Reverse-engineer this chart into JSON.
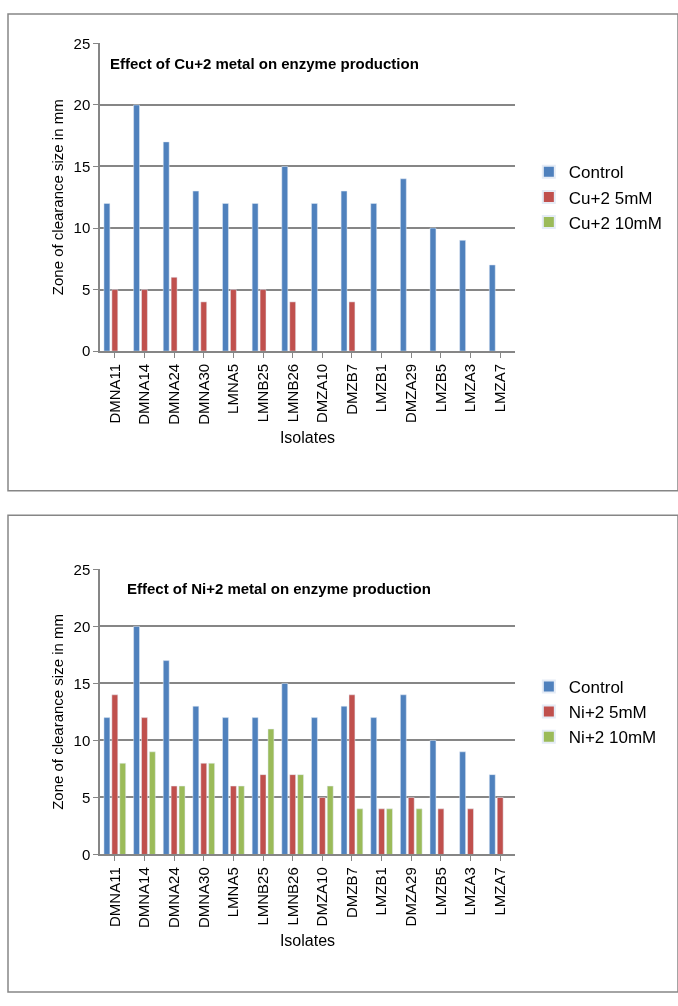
{
  "chart_data": [
    {
      "type": "bar",
      "title": "Effect of Cu+2 metal on enzyme production",
      "xlabel": "Isolates",
      "ylabel": "Zone of clearance size in mm",
      "categories": [
        "DMNA11",
        "DMNA14",
        "DMNA24",
        "DMNA30",
        "LMNA5",
        "LMNB25",
        "LMNB26",
        "DMZA10",
        "DMZB7",
        "LMZB1",
        "DMZA29",
        "LMZB5",
        "LMZA3",
        "LMZA7"
      ],
      "series": [
        {
          "name": "Control",
          "color": "#4f81bd",
          "values": [
            12,
            20,
            17,
            13,
            12,
            12,
            15,
            12,
            13,
            12,
            14,
            10,
            9,
            7
          ]
        },
        {
          "name": "Cu+2 5mM",
          "color": "#c0504d",
          "values": [
            5,
            5,
            6,
            4,
            5,
            5,
            4,
            null,
            4,
            null,
            null,
            null,
            null,
            null
          ]
        },
        {
          "name": "Cu+2 10mM",
          "color": "#9bbb59",
          "values": [
            null,
            null,
            null,
            null,
            null,
            null,
            null,
            null,
            null,
            null,
            null,
            null,
            null,
            null
          ]
        }
      ],
      "ylim": [
        0,
        25
      ],
      "yticks": [
        0,
        5,
        10,
        15,
        20,
        25
      ],
      "grid": "y",
      "legend": "right"
    },
    {
      "type": "bar",
      "title": "Effect of Ni+2 metal on enzyme production",
      "xlabel": "Isolates",
      "ylabel": "Zone of clearance size in mm",
      "categories": [
        "DMNA11",
        "DMNA14",
        "DMNA24",
        "DMNA30",
        "LMNA5",
        "LMNB25",
        "LMNB26",
        "DMZA10",
        "DMZB7",
        "LMZB1",
        "DMZA29",
        "LMZB5",
        "LMZA3",
        "LMZA7"
      ],
      "series": [
        {
          "name": "Control",
          "color": "#4f81bd",
          "values": [
            12,
            20,
            17,
            13,
            12,
            12,
            15,
            12,
            13,
            12,
            14,
            10,
            9,
            7
          ]
        },
        {
          "name": "Ni+2 5mM",
          "color": "#c0504d",
          "values": [
            14,
            12,
            6,
            8,
            6,
            7,
            7,
            5,
            14,
            4,
            5,
            4,
            4,
            5
          ]
        },
        {
          "name": "Ni+2 10mM",
          "color": "#9bbb59",
          "values": [
            8,
            9,
            6,
            8,
            6,
            11,
            7,
            6,
            4,
            4,
            4,
            null,
            null,
            null
          ]
        }
      ],
      "ylim": [
        0,
        25
      ],
      "yticks": [
        0,
        5,
        10,
        15,
        20,
        25
      ],
      "grid": "y",
      "legend": "right"
    }
  ]
}
